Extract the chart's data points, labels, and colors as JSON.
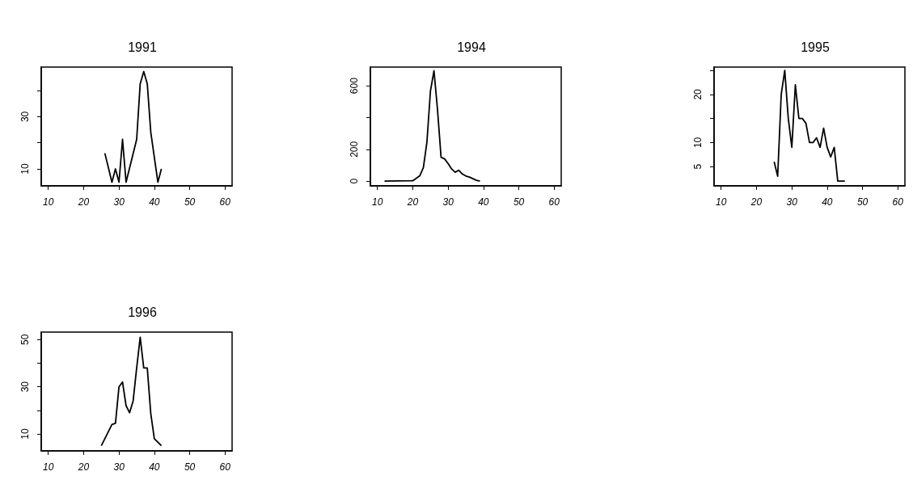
{
  "chart_data": [
    {
      "type": "line",
      "title": "1991",
      "x": [
        26,
        28,
        29,
        30,
        31,
        32,
        35,
        36,
        37,
        38,
        39,
        41,
        42
      ],
      "values": [
        16,
        4.9,
        10,
        4.9,
        21.3,
        4.9,
        21.3,
        42.6,
        47.3,
        42.6,
        24,
        4.9,
        10
      ],
      "color": "#000000",
      "marker": "none",
      "grid": false,
      "xlim": [
        8,
        62
      ],
      "xticks": [
        10,
        20,
        30,
        40,
        50,
        60
      ],
      "ylim": [
        3.5,
        49
      ],
      "yticks": [
        10,
        {
          "value": 20,
          "label": null
        },
        30,
        {
          "value": 40,
          "label": null
        }
      ]
    },
    {
      "type": "line",
      "title": "1994",
      "x": [
        12,
        20,
        22,
        23,
        24,
        25,
        26,
        27,
        28,
        29,
        30,
        31,
        32,
        33,
        34,
        35,
        36,
        37,
        38,
        39
      ],
      "values": [
        0,
        2,
        34,
        85,
        246,
        568,
        695,
        449,
        150,
        140,
        110,
        76,
        56,
        68,
        45,
        32,
        25,
        15,
        5,
        0
      ],
      "color": "#000000",
      "marker": "none",
      "grid": false,
      "xlim": [
        8,
        62
      ],
      "xticks": [
        10,
        20,
        30,
        40,
        50,
        60
      ],
      "ylim": [
        -30,
        718
      ],
      "yticks": [
        0,
        200,
        {
          "value": 400,
          "label": null
        },
        600
      ]
    },
    {
      "type": "line",
      "title": "1995",
      "x": [
        25,
        26,
        27,
        28,
        29,
        30,
        31,
        32,
        33,
        34,
        35,
        36,
        37,
        38,
        39,
        40,
        41,
        42,
        43,
        44,
        45
      ],
      "values": [
        6,
        3,
        20,
        25,
        15,
        9,
        22,
        15,
        15,
        14,
        10,
        10,
        11,
        9,
        13,
        9,
        7,
        9,
        2,
        2,
        2
      ],
      "color": "#000000",
      "marker": "none",
      "grid": false,
      "xlim": [
        8,
        62
      ],
      "xticks": [
        10,
        20,
        30,
        40,
        50,
        60
      ],
      "ylim": [
        1,
        25.7
      ],
      "yticks": [
        5,
        10,
        {
          "value": 15,
          "label": null
        },
        20,
        {
          "value": 25,
          "label": null
        }
      ]
    },
    {
      "type": "line",
      "title": "1996",
      "x": [
        25,
        28,
        29,
        30,
        31,
        32,
        33,
        34,
        35,
        36,
        37,
        38,
        39,
        40,
        42
      ],
      "values": [
        5,
        14,
        14.5,
        30,
        32,
        22,
        19,
        24,
        38,
        51,
        38,
        38,
        18.5,
        8,
        5
      ],
      "color": "#000000",
      "marker": "none",
      "grid": false,
      "xlim": [
        8,
        62
      ],
      "xticks": [
        10,
        20,
        30,
        40,
        50,
        60
      ],
      "ylim": [
        2.8,
        53.2
      ],
      "yticks": [
        10,
        {
          "value": 20,
          "label": null
        },
        30,
        {
          "value": 40,
          "label": null
        },
        50
      ]
    }
  ]
}
